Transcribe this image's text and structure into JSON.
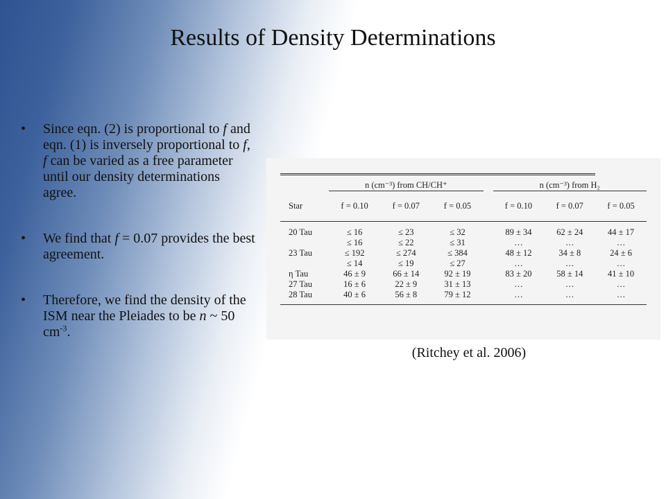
{
  "title": "Results of Density Determinations",
  "bullets": [
    {
      "pre": "Since eqn. (2) is proportional to ",
      "f1": "f",
      "mid": " and eqn. (1) is inversely proportional to ",
      "f2": "f",
      "mid2": ", ",
      "f3": "f",
      "post": " can be varied as a free parameter until our density determinations agree."
    },
    {
      "pre": "We find that ",
      "f1": "f",
      "post": " = 0.07 provides the best agreement."
    },
    {
      "pre": "Therefore, we find the density of the ISM near the Pleiades to be ",
      "n": "n",
      "post": " ~ 50 cm",
      "sup": "-3",
      "end": "."
    }
  ],
  "table": {
    "group1": "n (cm⁻³) from CH/CH⁺",
    "group2": "n (cm⁻³) from H₂",
    "star_header": "Star",
    "col_headers": [
      "f = 0.10",
      "f = 0.07",
      "f = 0.05",
      "f = 0.10",
      "f = 0.07",
      "f = 0.05"
    ],
    "rows": [
      [
        "20 Tau",
        "≤  16",
        "≤  23",
        "≤  32",
        "89 ± 34",
        "62 ± 24",
        "44 ± 17"
      ],
      [
        "",
        "≤  16",
        "≤  22",
        "≤  31",
        "…",
        "…",
        "…"
      ],
      [
        "23 Tau",
        "≤ 192",
        "≤ 274",
        "≤ 384",
        "48 ± 12",
        "34 ±  8",
        "24 ±  6"
      ],
      [
        "",
        "≤  14",
        "≤  19",
        "≤  27",
        "…",
        "…",
        "…"
      ],
      [
        "η Tau",
        "46 ± 9",
        "66 ± 14",
        "92 ± 19",
        "83 ± 20",
        "58 ± 14",
        "41 ± 10"
      ],
      [
        "27 Tau",
        "16 ± 6",
        "22 ±  9",
        "31 ± 13",
        "…",
        "…",
        "…"
      ],
      [
        "28 Tau",
        "40 ± 6",
        "56 ±  8",
        "79 ± 12",
        "…",
        "…",
        "…"
      ]
    ]
  },
  "citation": "(Ritchey et al. 2006)"
}
